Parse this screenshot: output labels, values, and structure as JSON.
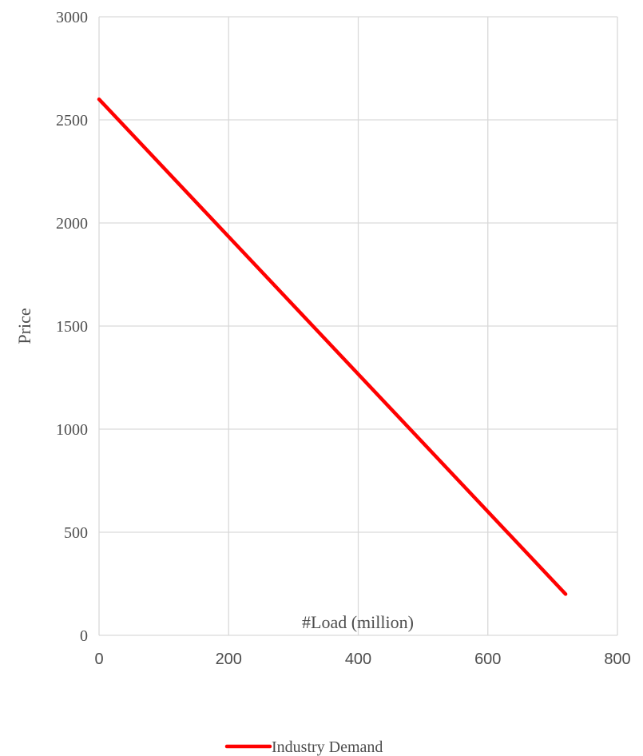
{
  "chart_data": {
    "type": "line",
    "title": "",
    "xlabel": "#Load (million)",
    "ylabel": "Price",
    "xlim": [
      0,
      800
    ],
    "ylim": [
      0,
      3000
    ],
    "x_ticks": [
      0,
      200,
      400,
      600,
      800
    ],
    "y_ticks": [
      0,
      500,
      1000,
      1500,
      2000,
      2500,
      3000
    ],
    "grid": true,
    "legend_position": "bottom",
    "series": [
      {
        "name": "Industry Demand",
        "color": "#ff0000",
        "x": [
          0,
          720
        ],
        "y": [
          2600,
          200
        ]
      }
    ]
  }
}
